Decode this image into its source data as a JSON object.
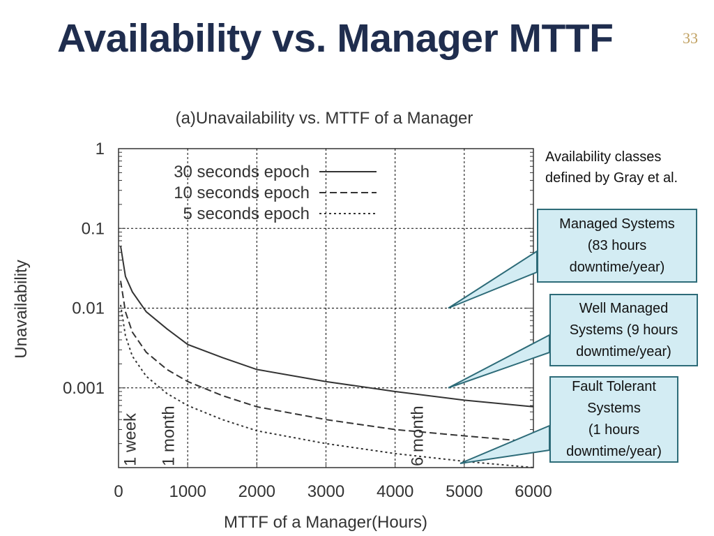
{
  "slide": {
    "title": "Availability vs. Manager MTTF",
    "page_number": "33"
  },
  "note": {
    "line1": "Availability classes",
    "line2": "defined by Gray et al."
  },
  "callouts": [
    {
      "lines": [
        "Managed Systems",
        "(83 hours",
        "downtime/year)"
      ],
      "target_y": 0.01
    },
    {
      "lines": [
        "Well Managed",
        "Systems (9 hours",
        "downtime/year)"
      ],
      "target_y": 0.001
    },
    {
      "lines": [
        "Fault Tolerant",
        "Systems",
        "(1 hours",
        "downtime/year)"
      ],
      "target_y": 0.0001
    }
  ],
  "colors": {
    "title": "#1f2d4e",
    "page_number": "#c0a060",
    "callout_fill": "#d3ecf3",
    "callout_border": "#2d6b78",
    "plot_line": "#333333"
  },
  "chart_data": {
    "type": "line",
    "title": "(a)Unavailability vs. MTTF of a Manager",
    "xlabel": "MTTF of a Manager(Hours)",
    "ylabel": "Unavailability",
    "xlim": [
      0,
      6000
    ],
    "ylim": [
      0.0001,
      1
    ],
    "yscale": "log",
    "grid": true,
    "legend_position": "top-left",
    "x_ticks": [
      0,
      1000,
      2000,
      3000,
      4000,
      5000,
      6000
    ],
    "x_tick_labels": [
      "0",
      "1000",
      "2000",
      "3000",
      "4000",
      "5000",
      "6000"
    ],
    "y_ticks": [
      1,
      0.1,
      0.01,
      0.001
    ],
    "y_tick_labels": [
      "1",
      "0.1",
      "0.01",
      "0.001"
    ],
    "vertical_markers": [
      {
        "x": 168,
        "label": "1 week"
      },
      {
        "x": 720,
        "label": "1 month"
      },
      {
        "x": 4320,
        "label": "6 month"
      }
    ],
    "series": [
      {
        "name": "30 seconds epoch",
        "style": "solid",
        "x": [
          30,
          100,
          200,
          400,
          700,
          1000,
          1500,
          2000,
          3000,
          4000,
          5000,
          6000
        ],
        "y": [
          0.06,
          0.025,
          0.016,
          0.009,
          0.0055,
          0.0035,
          0.0024,
          0.0017,
          0.0012,
          0.0009,
          0.0007,
          0.00058
        ]
      },
      {
        "name": "10 seconds epoch",
        "style": "dashed",
        "x": [
          30,
          100,
          200,
          400,
          700,
          1000,
          1500,
          2000,
          3000,
          4000,
          5000,
          6000
        ],
        "y": [
          0.022,
          0.009,
          0.005,
          0.0028,
          0.0017,
          0.0012,
          0.0008,
          0.00058,
          0.0004,
          0.0003,
          0.00025,
          0.00021
        ]
      },
      {
        "name": "5 seconds epoch",
        "style": "dotted",
        "x": [
          30,
          100,
          200,
          400,
          700,
          1000,
          1500,
          2000,
          3000,
          4000,
          5000,
          6000
        ],
        "y": [
          0.011,
          0.0045,
          0.0025,
          0.0014,
          0.00085,
          0.0006,
          0.0004,
          0.00029,
          0.0002,
          0.00015,
          0.00012,
          0.0001
        ]
      }
    ]
  }
}
